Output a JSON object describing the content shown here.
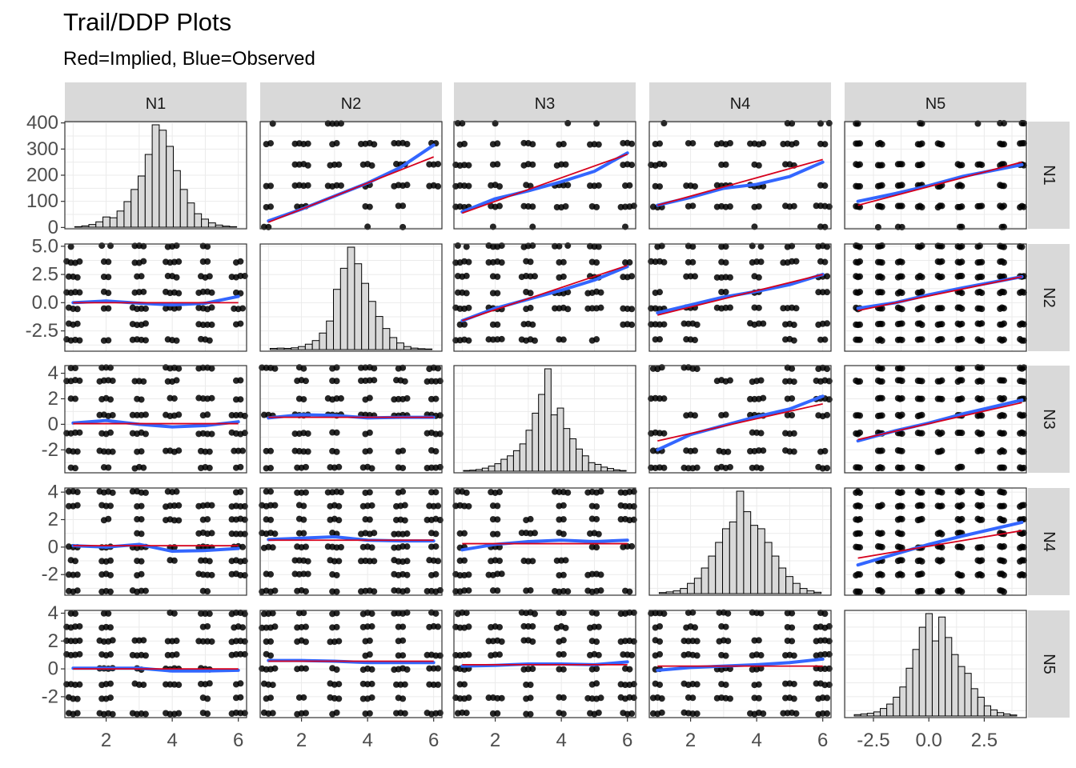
{
  "title": "Trail/DDP Plots",
  "subtitle": "Red=Implied, Blue=Observed",
  "colors": {
    "implied": "#d6001c",
    "observed": "#3366ff",
    "strip": "#d9d9d9",
    "hist_fill": "#d9d9d9"
  },
  "chart_data": {
    "type": "scatter",
    "variables": [
      "N1",
      "N2",
      "N3",
      "N4",
      "N5"
    ],
    "grid": true,
    "x_axis": {
      "columns_1_4": {
        "range": [
          0.75,
          6.25
        ],
        "ticks": [
          2,
          4,
          6
        ],
        "tick_labels": [
          "2",
          "4",
          "6"
        ]
      },
      "column_5": {
        "range": [
          -3.8,
          4.4
        ],
        "ticks": [
          -2.5,
          0.0,
          2.5
        ],
        "tick_labels": [
          "-2.5",
          "0.0",
          "2.5"
        ]
      }
    },
    "y_axis": [
      {
        "row": "N1",
        "range": [
          -5,
          405
        ],
        "ticks": [
          0,
          100,
          200,
          300,
          400
        ],
        "tick_labels": [
          "0",
          "100",
          "200",
          "300",
          "400"
        ]
      },
      {
        "row": "N2",
        "range": [
          -4.3,
          5.2
        ],
        "ticks": [
          -2.5,
          0.0,
          2.5,
          5.0
        ],
        "tick_labels": [
          "-2.5",
          "0.0",
          "2.5",
          "5.0"
        ]
      },
      {
        "row": "N3",
        "range": [
          -3.8,
          4.6
        ],
        "ticks": [
          -2,
          0,
          2,
          4
        ],
        "tick_labels": [
          "-2",
          "0",
          "2",
          "4"
        ]
      },
      {
        "row": "N4",
        "range": [
          -3.5,
          4.3
        ],
        "ticks": [
          -2,
          0,
          2,
          4
        ],
        "tick_labels": [
          "-2",
          "0",
          "2",
          "4"
        ]
      },
      {
        "row": "N5",
        "range": [
          -3.5,
          4.2
        ],
        "ticks": [
          -2,
          0,
          2,
          4
        ],
        "tick_labels": [
          "-2",
          "0",
          "2",
          "4"
        ]
      }
    ],
    "histograms": {
      "N1": {
        "bins": [
          0.55,
          0.8,
          1.05,
          1.3,
          1.55,
          1.8,
          2.05,
          2.3,
          2.55,
          2.8,
          3.05,
          3.3,
          3.55,
          3.8,
          4.05,
          4.3,
          4.55,
          4.8,
          5.05,
          5.3,
          5.55,
          5.8,
          6.05
        ],
        "counts": [
          2,
          5,
          10,
          20,
          38,
          35,
          60,
          95,
          140,
          190,
          270,
          380,
          360,
          300,
          210,
          140,
          90,
          50,
          30,
          16,
          8,
          4,
          2
        ]
      },
      "N2": {
        "bins": [
          -3.9,
          -3.5,
          -3.1,
          -2.7,
          -2.3,
          -1.9,
          -1.5,
          -1.1,
          -0.7,
          -0.3,
          0.1,
          0.5,
          0.9,
          1.3,
          1.7,
          2.1,
          2.5,
          2.9,
          3.3,
          3.7,
          4.1,
          4.5,
          4.9
        ],
        "counts": [
          4,
          5,
          4,
          6,
          10,
          18,
          30,
          55,
          95,
          200,
          270,
          340,
          285,
          220,
          160,
          110,
          70,
          40,
          22,
          10,
          5,
          3,
          2
        ]
      },
      "N3": {
        "bins": [
          -3.6,
          -3.3,
          -3.0,
          -2.7,
          -2.4,
          -2.1,
          -1.8,
          -1.5,
          -1.2,
          -0.9,
          -0.6,
          -0.3,
          0.0,
          0.3,
          0.6,
          0.9,
          1.2,
          1.5,
          1.8,
          2.1,
          2.4,
          2.7,
          3.0,
          3.3,
          3.6,
          3.9
        ],
        "counts": [
          2,
          3,
          5,
          9,
          15,
          22,
          35,
          45,
          60,
          80,
          120,
          170,
          225,
          300,
          165,
          185,
          125,
          95,
          65,
          45,
          25,
          20,
          12,
          8,
          4,
          2
        ]
      },
      "N4": {
        "bins": [
          -2.9,
          -2.6,
          -2.3,
          -2.0,
          -1.7,
          -1.4,
          -1.1,
          -0.8,
          -0.5,
          -0.2,
          0.1,
          0.4,
          0.7,
          1.0,
          1.3,
          1.6,
          1.9,
          2.2,
          2.5,
          2.8,
          3.1,
          3.4,
          3.7
        ],
        "counts": [
          3,
          5,
          8,
          15,
          30,
          45,
          75,
          110,
          150,
          190,
          210,
          300,
          240,
          200,
          190,
          150,
          110,
          75,
          50,
          30,
          15,
          8,
          4
        ]
      },
      "N5": {
        "bins": [
          -3.4,
          -3.1,
          -2.8,
          -2.5,
          -2.2,
          -1.9,
          -1.6,
          -1.3,
          -1.0,
          -0.7,
          -0.4,
          -0.1,
          0.2,
          0.5,
          0.8,
          1.1,
          1.4,
          1.7,
          2.0,
          2.3,
          2.6,
          2.9,
          3.2,
          3.5,
          3.8
        ],
        "counts": [
          4,
          6,
          8,
          12,
          22,
          35,
          55,
          85,
          140,
          195,
          260,
          300,
          220,
          290,
          230,
          180,
          145,
          125,
          80,
          55,
          30,
          18,
          10,
          6,
          3
        ]
      }
    },
    "lines": {
      "N1": {
        "N2": {
          "implied": [
            [
              1,
              20
            ],
            [
              6,
              270
            ]
          ],
          "observed": [
            [
              1,
              25
            ],
            [
              2,
              70
            ],
            [
              3,
              120
            ],
            [
              4,
              170
            ],
            [
              5,
              230
            ],
            [
              6,
              315
            ]
          ]
        },
        "N3": {
          "implied": [
            [
              1,
              55
            ],
            [
              6,
              280
            ]
          ],
          "observed": [
            [
              1,
              60
            ],
            [
              2,
              110
            ],
            [
              3,
              140
            ],
            [
              4,
              175
            ],
            [
              5,
              215
            ],
            [
              6,
              285
            ]
          ]
        },
        "N4": {
          "implied": [
            [
              1,
              85
            ],
            [
              6,
              260
            ]
          ],
          "observed": [
            [
              1,
              85
            ],
            [
              2,
              115
            ],
            [
              3,
              150
            ],
            [
              4,
              165
            ],
            [
              5,
              195
            ],
            [
              6,
              250
            ]
          ]
        },
        "N5": {
          "implied": [
            [
              -3.2,
              85
            ],
            [
              4.2,
              250
            ]
          ],
          "observed": [
            [
              -3.2,
              100
            ],
            [
              -1.5,
              130
            ],
            [
              0,
              160
            ],
            [
              1.5,
              195
            ],
            [
              4.2,
              240
            ]
          ]
        }
      },
      "N2": {
        "N1": {
          "implied": [
            [
              1,
              0
            ],
            [
              6,
              0
            ]
          ],
          "observed": [
            [
              1,
              0.0
            ],
            [
              2,
              0.15
            ],
            [
              3,
              -0.05
            ],
            [
              4,
              -0.2
            ],
            [
              5,
              -0.05
            ],
            [
              6,
              0.55
            ]
          ]
        },
        "N3": {
          "implied": [
            [
              1,
              -1.6
            ],
            [
              6,
              3.3
            ]
          ],
          "observed": [
            [
              1,
              -1.6
            ],
            [
              2,
              -0.5
            ],
            [
              3,
              0.3
            ],
            [
              4,
              1.1
            ],
            [
              5,
              2.0
            ],
            [
              6,
              3.2
            ]
          ]
        },
        "N4": {
          "implied": [
            [
              1,
              -1.1
            ],
            [
              6,
              2.5
            ]
          ],
          "observed": [
            [
              1,
              -0.9
            ],
            [
              2,
              -0.2
            ],
            [
              3,
              0.5
            ],
            [
              4,
              1.0
            ],
            [
              5,
              1.6
            ],
            [
              6,
              2.5
            ]
          ]
        },
        "N5": {
          "implied": [
            [
              -3.2,
              -0.7
            ],
            [
              4.2,
              2.3
            ]
          ],
          "observed": [
            [
              -3.2,
              -0.5
            ],
            [
              -1.5,
              0.0
            ],
            [
              0,
              0.7
            ],
            [
              1.5,
              1.3
            ],
            [
              4.2,
              2.3
            ]
          ]
        }
      },
      "N3": {
        "N1": {
          "implied": [
            [
              1,
              0.05
            ],
            [
              6,
              0.05
            ]
          ],
          "observed": [
            [
              1,
              0.1
            ],
            [
              2,
              0.3
            ],
            [
              3,
              0.0
            ],
            [
              4,
              -0.2
            ],
            [
              5,
              -0.1
            ],
            [
              6,
              0.2
            ]
          ]
        },
        "N2": {
          "implied": [
            [
              1,
              0.55
            ],
            [
              6,
              0.55
            ]
          ],
          "observed": [
            [
              1,
              0.5
            ],
            [
              2,
              0.75
            ],
            [
              3,
              0.7
            ],
            [
              4,
              0.5
            ],
            [
              5,
              0.55
            ],
            [
              6,
              0.55
            ]
          ]
        },
        "N4": {
          "implied": [
            [
              1,
              -1.3
            ],
            [
              6,
              1.6
            ]
          ],
          "observed": [
            [
              1,
              -2.0
            ],
            [
              2,
              -0.8
            ],
            [
              3,
              -0.1
            ],
            [
              4,
              0.6
            ],
            [
              5,
              1.2
            ],
            [
              6,
              2.2
            ]
          ]
        },
        "N5": {
          "implied": [
            [
              -3.2,
              -1.2
            ],
            [
              4.2,
              1.7
            ]
          ],
          "observed": [
            [
              -3.2,
              -1.3
            ],
            [
              -1.5,
              -0.5
            ],
            [
              0,
              0.1
            ],
            [
              1.5,
              0.8
            ],
            [
              4.2,
              1.9
            ]
          ]
        }
      },
      "N4": {
        "N1": {
          "implied": [
            [
              1,
              0.1
            ],
            [
              6,
              0.1
            ]
          ],
          "observed": [
            [
              1,
              0.1
            ],
            [
              2,
              0.0
            ],
            [
              3,
              0.2
            ],
            [
              4,
              -0.3
            ],
            [
              5,
              -0.25
            ],
            [
              6,
              -0.1
            ]
          ]
        },
        "N2": {
          "implied": [
            [
              1,
              0.5
            ],
            [
              6,
              0.5
            ]
          ],
          "observed": [
            [
              1,
              0.55
            ],
            [
              2,
              0.65
            ],
            [
              3,
              0.75
            ],
            [
              4,
              0.5
            ],
            [
              5,
              0.45
            ],
            [
              6,
              0.45
            ]
          ]
        },
        "N3": {
          "implied": [
            [
              1,
              0.25
            ],
            [
              6,
              0.25
            ]
          ],
          "observed": [
            [
              1,
              -0.2
            ],
            [
              2,
              0.2
            ],
            [
              3,
              0.4
            ],
            [
              4,
              0.5
            ],
            [
              5,
              0.4
            ],
            [
              6,
              0.5
            ]
          ]
        },
        "N5": {
          "implied": [
            [
              -3.2,
              -0.8
            ],
            [
              4.2,
              1.2
            ]
          ],
          "observed": [
            [
              -3.2,
              -1.3
            ],
            [
              -1.5,
              -0.5
            ],
            [
              0,
              0.2
            ],
            [
              1.5,
              0.8
            ],
            [
              4.2,
              1.8
            ]
          ]
        }
      },
      "N5": {
        "N1": {
          "implied": [
            [
              1,
              0.0
            ],
            [
              6,
              0.0
            ]
          ],
          "observed": [
            [
              1,
              0.05
            ],
            [
              2,
              0.05
            ],
            [
              3,
              0.05
            ],
            [
              4,
              -0.15
            ],
            [
              5,
              -0.15
            ],
            [
              6,
              -0.1
            ]
          ]
        },
        "N2": {
          "implied": [
            [
              1,
              0.55
            ],
            [
              6,
              0.55
            ]
          ],
          "observed": [
            [
              1,
              0.6
            ],
            [
              2,
              0.6
            ],
            [
              3,
              0.55
            ],
            [
              4,
              0.45
            ],
            [
              5,
              0.45
            ],
            [
              6,
              0.45
            ]
          ]
        },
        "N3": {
          "implied": [
            [
              1,
              0.3
            ],
            [
              6,
              0.3
            ]
          ],
          "observed": [
            [
              1,
              0.2
            ],
            [
              2,
              0.25
            ],
            [
              3,
              0.35
            ],
            [
              4,
              0.35
            ],
            [
              5,
              0.3
            ],
            [
              6,
              0.5
            ]
          ]
        },
        "N4": {
          "implied": [
            [
              1,
              0.2
            ],
            [
              6,
              0.2
            ]
          ],
          "observed": [
            [
              1,
              -0.1
            ],
            [
              2,
              0.1
            ],
            [
              3,
              0.2
            ],
            [
              4,
              0.3
            ],
            [
              5,
              0.45
            ],
            [
              6,
              0.7
            ]
          ]
        }
      }
    },
    "point_levels": {
      "N1": [
        0,
        80,
        160,
        240,
        320,
        400
      ],
      "N2": [
        -3.3,
        -1.9,
        -0.5,
        0.9,
        2.3,
        3.6,
        5.0
      ],
      "N3": [
        -3.4,
        -2.1,
        -0.7,
        0.7,
        2.0,
        3.4,
        4.4
      ],
      "N4": [
        -3.2,
        -2.0,
        -1.0,
        0.0,
        1.0,
        2.0,
        3.0,
        4.0
      ],
      "N5": [
        -3.2,
        -2.1,
        -1.1,
        0.0,
        1.0,
        2.0,
        3.0,
        4.0
      ]
    }
  }
}
